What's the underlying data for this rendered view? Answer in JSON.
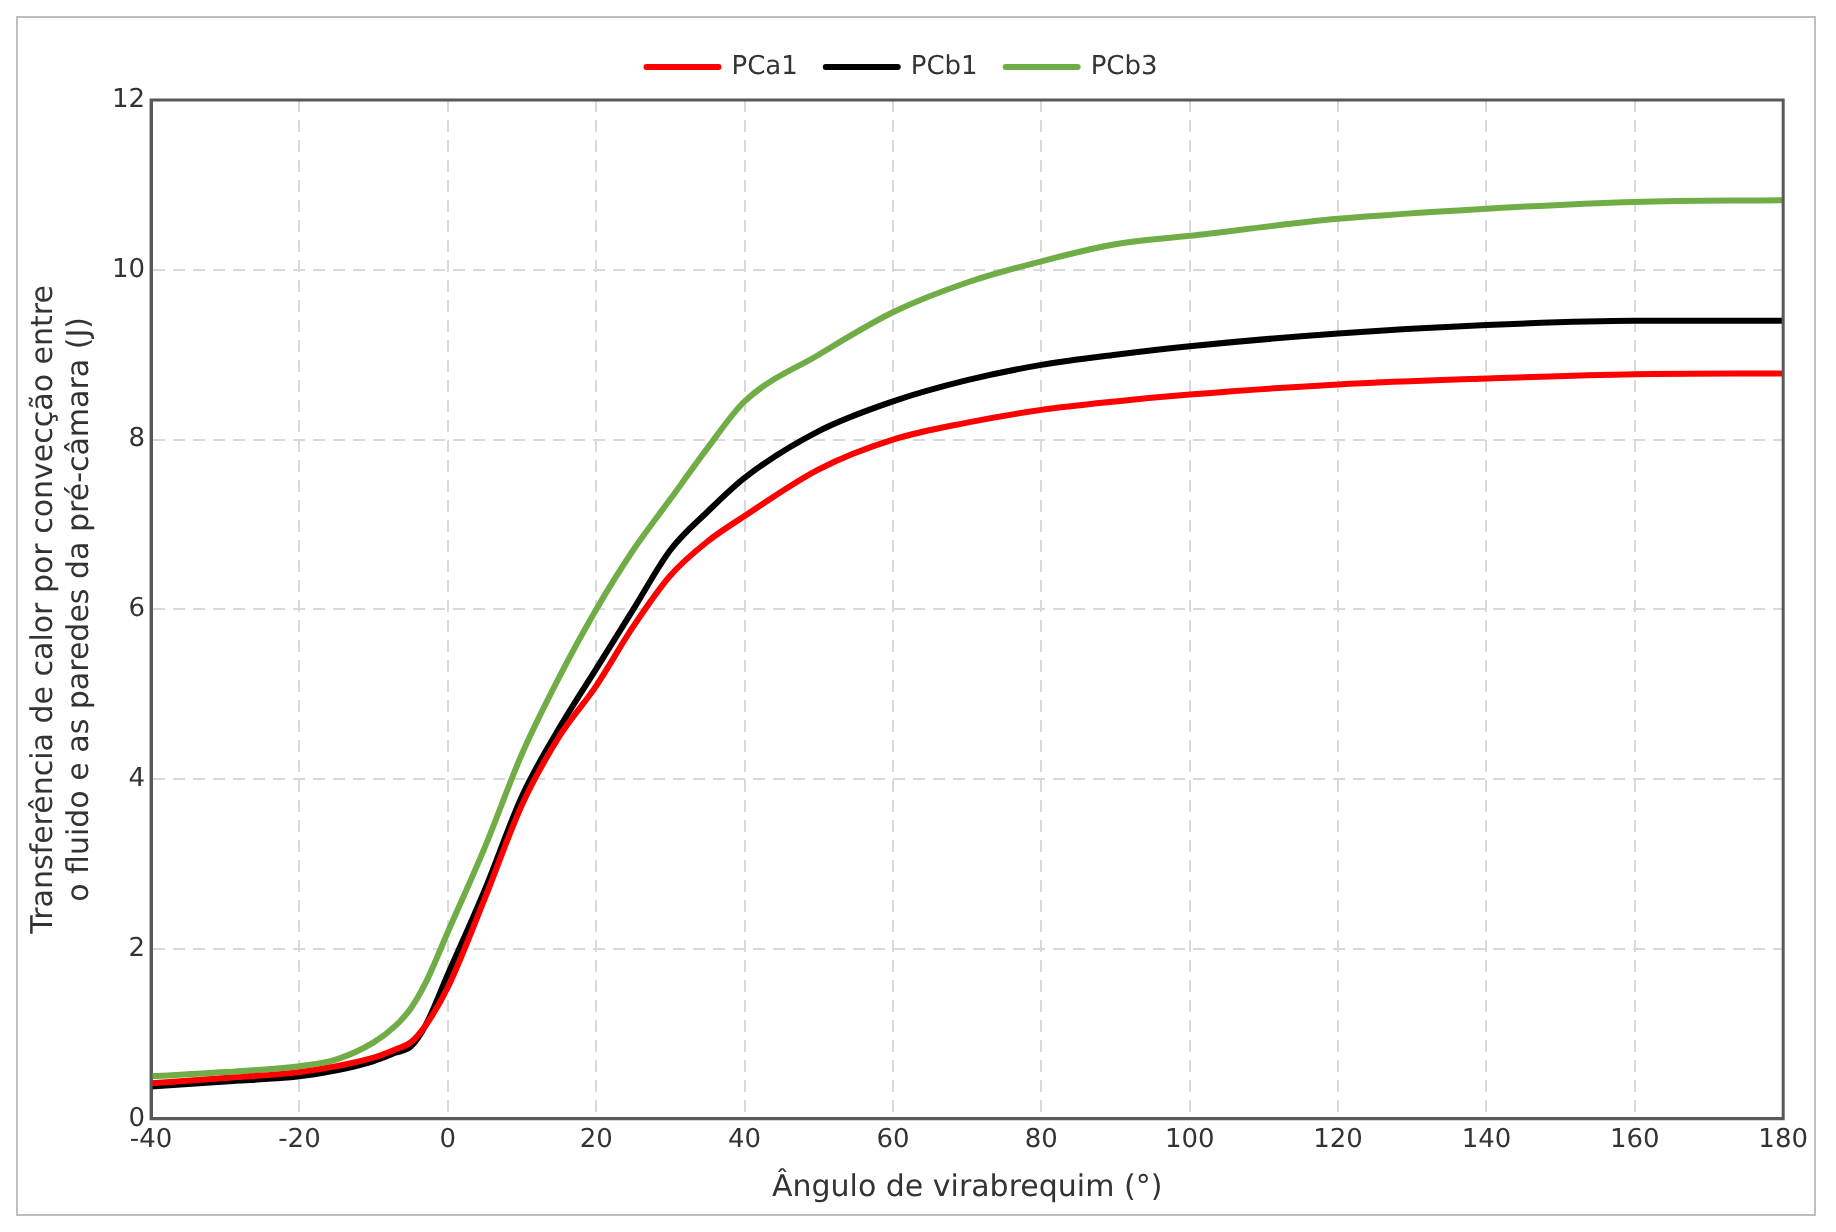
{
  "chart_data": {
    "type": "line",
    "xlabel": "Ângulo de virabrequim (°)",
    "ylabel": "Transferência de calor por convecção entre o fluido e as paredes da pré-câmara (J)",
    "x": [
      -40,
      -30,
      -20,
      -15,
      -10,
      -7,
      -5,
      -3,
      0,
      5,
      10,
      15,
      20,
      25,
      30,
      35,
      40,
      50,
      60,
      70,
      80,
      90,
      100,
      120,
      140,
      160,
      180
    ],
    "series": [
      {
        "name": "PCa1",
        "color": "#ff0000",
        "values": [
          0.42,
          0.48,
          0.55,
          0.62,
          0.72,
          0.82,
          0.9,
          1.1,
          1.55,
          2.6,
          3.7,
          4.5,
          5.1,
          5.8,
          6.4,
          6.8,
          7.1,
          7.65,
          8.0,
          8.2,
          8.35,
          8.45,
          8.53,
          8.65,
          8.72,
          8.77,
          8.78
        ]
      },
      {
        "name": "PCb1",
        "color": "#000000",
        "values": [
          0.38,
          0.44,
          0.5,
          0.57,
          0.68,
          0.78,
          0.85,
          1.1,
          1.7,
          2.7,
          3.8,
          4.6,
          5.3,
          6.0,
          6.7,
          7.15,
          7.55,
          8.1,
          8.45,
          8.7,
          8.88,
          9.0,
          9.1,
          9.25,
          9.35,
          9.4,
          9.4
        ]
      },
      {
        "name": "PCb3",
        "color": "#70ad47",
        "values": [
          0.5,
          0.55,
          0.62,
          0.7,
          0.9,
          1.1,
          1.3,
          1.6,
          2.2,
          3.2,
          4.3,
          5.2,
          6.0,
          6.7,
          7.3,
          7.9,
          8.45,
          9.0,
          9.5,
          9.85,
          10.1,
          10.3,
          10.4,
          10.6,
          10.72,
          10.8,
          10.82
        ]
      }
    ],
    "xlim": [
      -40,
      180
    ],
    "xticks": [
      -40,
      -20,
      0,
      20,
      40,
      60,
      80,
      100,
      120,
      140,
      160,
      180
    ],
    "ylim": [
      0,
      12
    ],
    "yticks": [
      0,
      2,
      4,
      6,
      8,
      10,
      12
    ],
    "grid": true,
    "legend": "top",
    "marker": "none",
    "line_style": "solid"
  }
}
